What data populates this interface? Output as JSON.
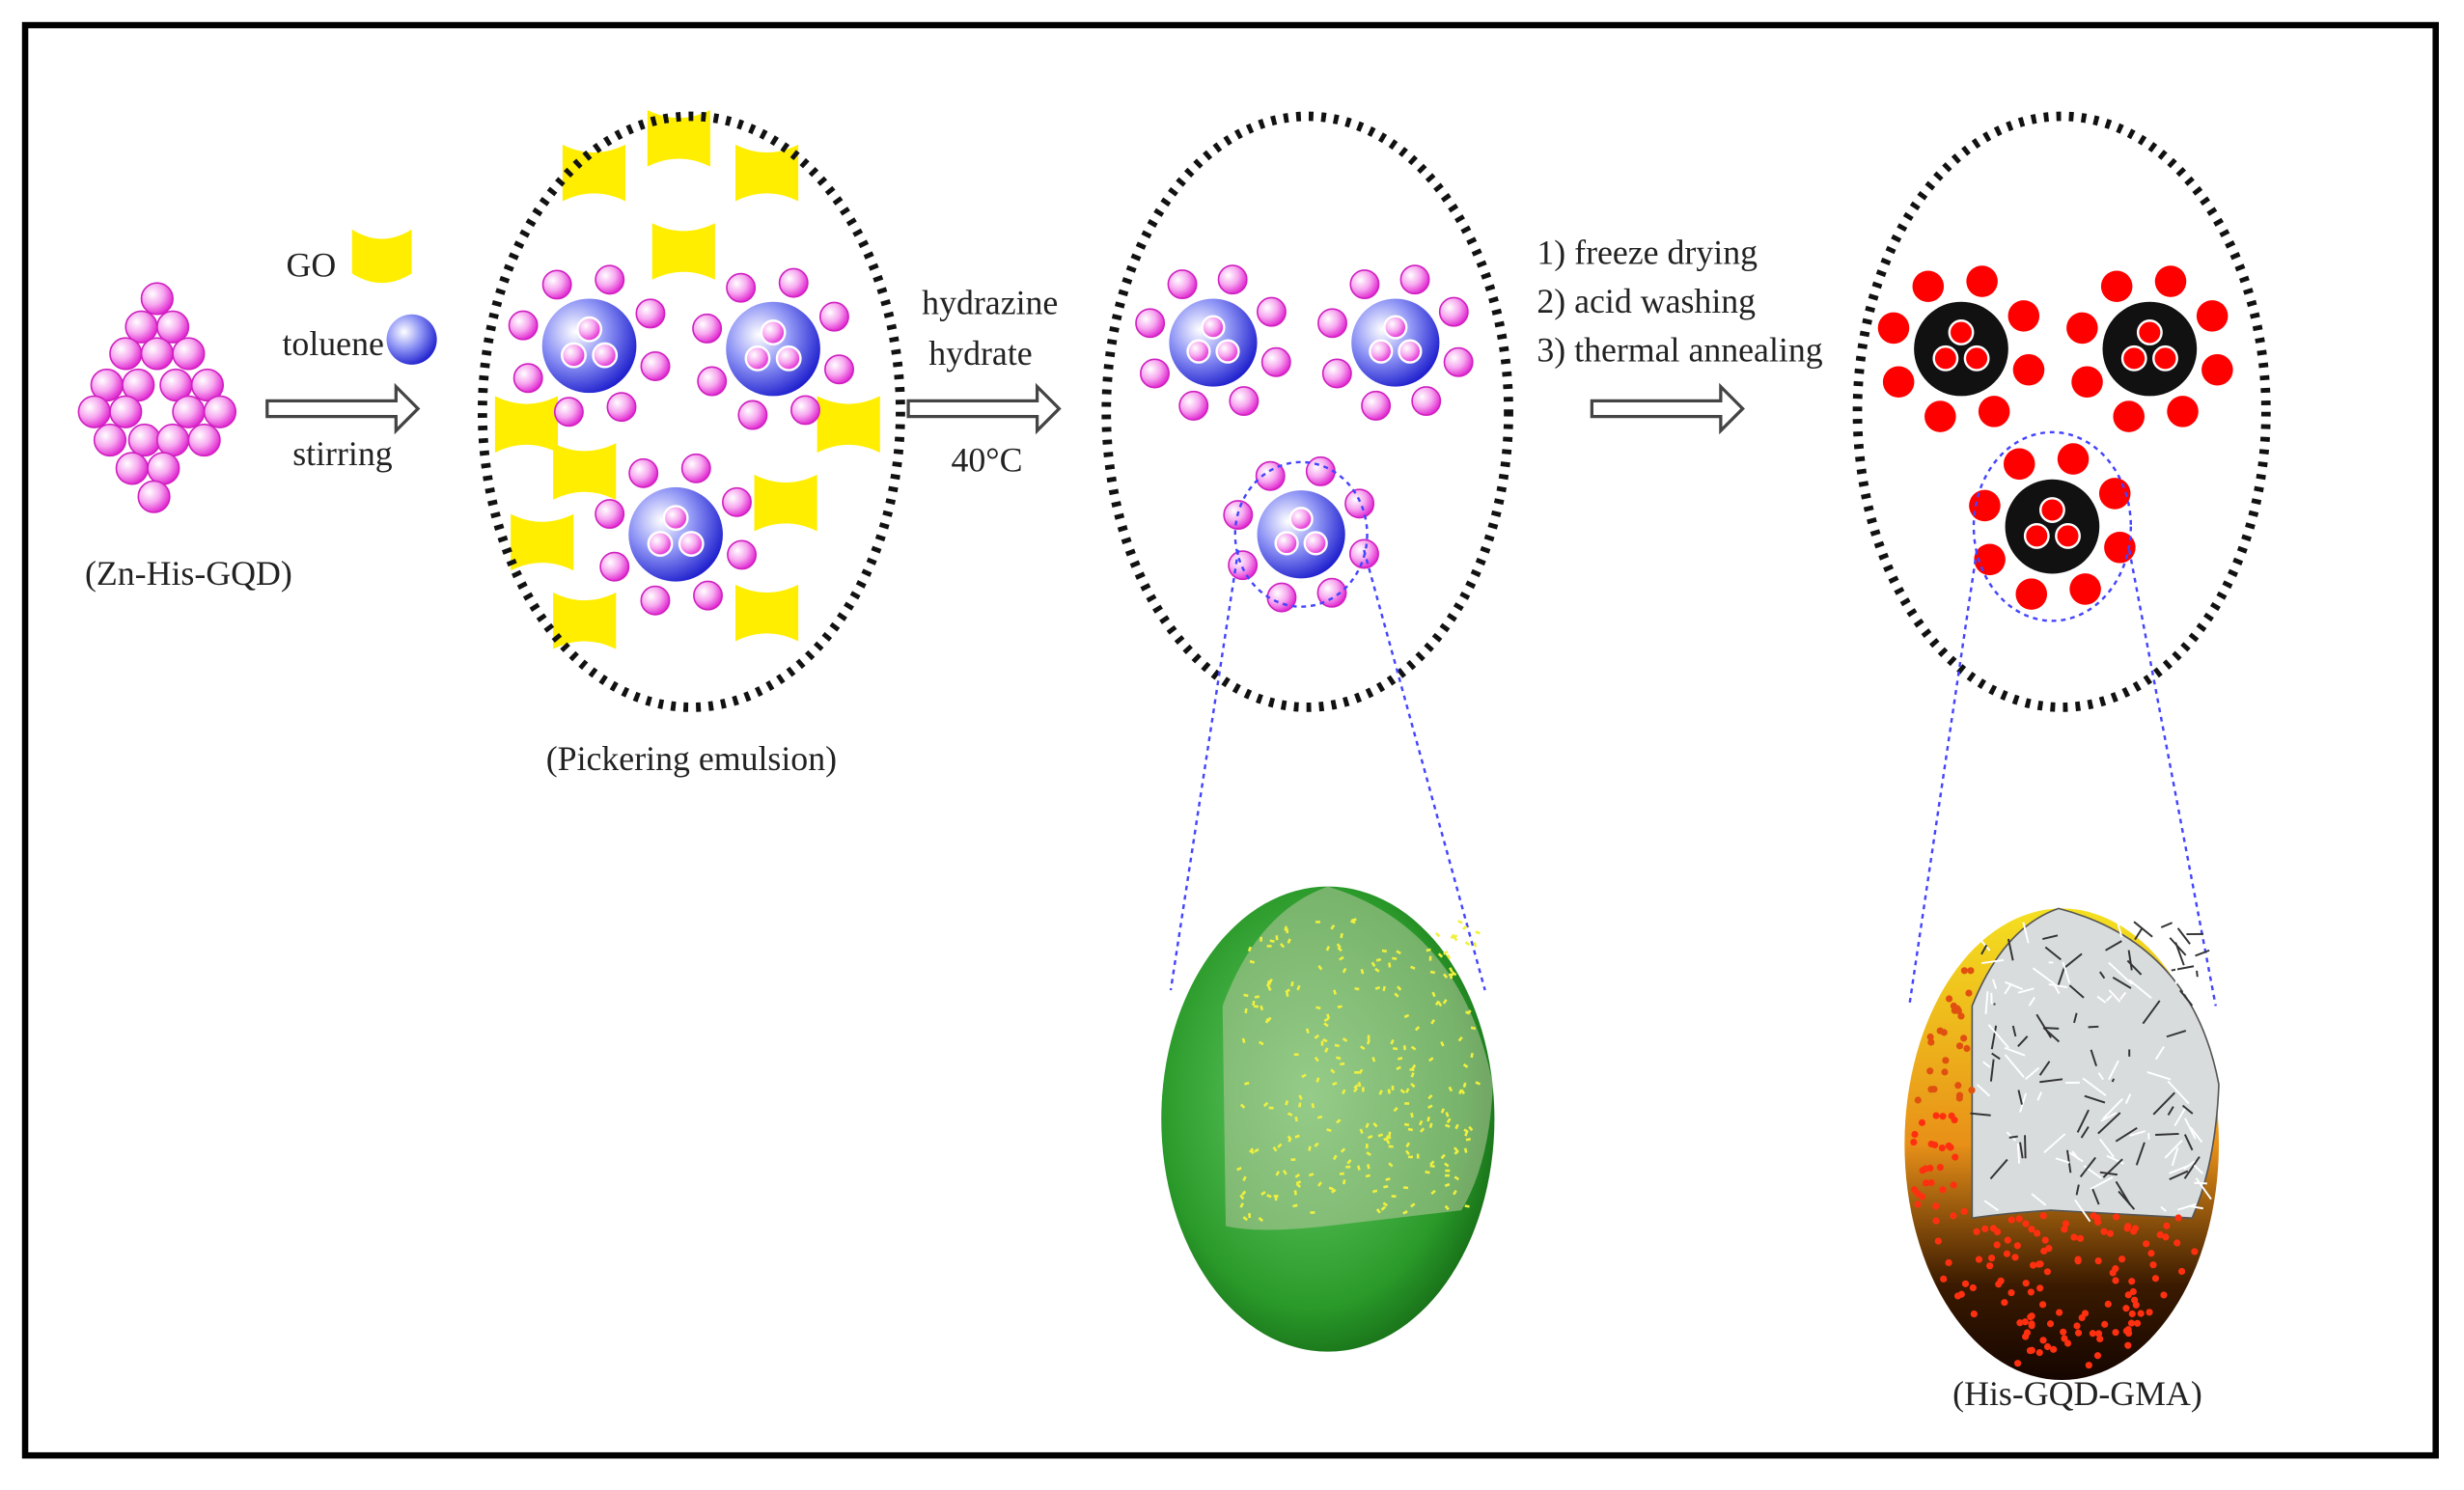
{
  "labels": {
    "go": "GO",
    "toluene": "toluene",
    "stirring": "stirring",
    "zn_his_gqd": "(Zn-His-GQD)",
    "pickering": "(Pickering emulsion)",
    "hydrazine": "hydrazine",
    "hydrate": "hydrate",
    "temperature": "40°C",
    "step1": "1) freeze drying",
    "step2": "2) acid washing",
    "step3": "3) thermal annealing",
    "product": "(His-GQD-GMA)"
  }
}
